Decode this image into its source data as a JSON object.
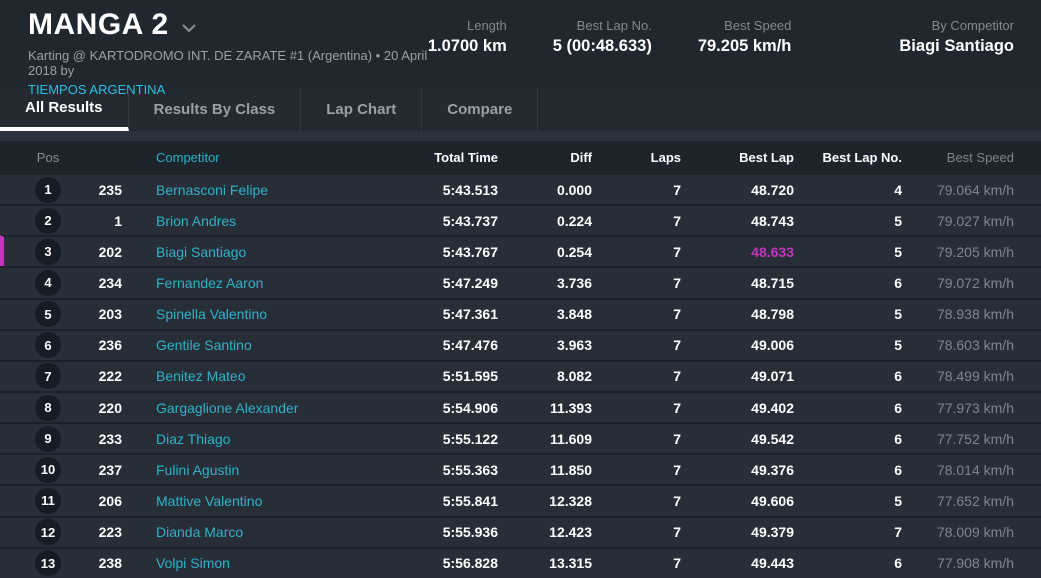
{
  "header": {
    "title": "MANGA 2",
    "subtitle": "Karting @ KARTODROMO INT. DE ZARATE #1 (Argentina) • 20 April 2018 by",
    "organizer": "TIEMPOS ARGENTINA",
    "stats": [
      {
        "label": "Length",
        "value": "1.0700 km"
      },
      {
        "label": "Best Lap No.",
        "value": "5 (00:48.633)"
      },
      {
        "label": "Best Speed",
        "value": "79.205 km/h"
      },
      {
        "label": "By Competitor",
        "value": "Biagi Santiago"
      }
    ]
  },
  "tabs": {
    "items": [
      {
        "label": "All Results",
        "active": true
      },
      {
        "label": "Results By Class",
        "active": false
      },
      {
        "label": "Lap Chart",
        "active": false
      },
      {
        "label": "Compare",
        "active": false
      }
    ]
  },
  "table": {
    "columns": [
      {
        "key": "pos",
        "label": "Pos"
      },
      {
        "key": "num",
        "label": ""
      },
      {
        "key": "name",
        "label": "Competitor"
      },
      {
        "key": "total",
        "label": "Total Time"
      },
      {
        "key": "diff",
        "label": "Diff"
      },
      {
        "key": "laps",
        "label": "Laps"
      },
      {
        "key": "bestlap",
        "label": "Best Lap"
      },
      {
        "key": "bestlapno",
        "label": "Best Lap No."
      },
      {
        "key": "speed",
        "label": "Best Speed"
      }
    ],
    "rows": [
      {
        "pos": "1",
        "num": "235",
        "name": "Bernasconi Felipe",
        "total": "5:43.513",
        "diff": "0.000",
        "laps": "7",
        "bestlap": "48.720",
        "bestlapno": "4",
        "speed": "79.064 km/h",
        "highlight": false,
        "best_overall": false
      },
      {
        "pos": "2",
        "num": "1",
        "name": "Brion Andres",
        "total": "5:43.737",
        "diff": "0.224",
        "laps": "7",
        "bestlap": "48.743",
        "bestlapno": "5",
        "speed": "79.027 km/h",
        "highlight": false,
        "best_overall": false
      },
      {
        "pos": "3",
        "num": "202",
        "name": "Biagi Santiago",
        "total": "5:43.767",
        "diff": "0.254",
        "laps": "7",
        "bestlap": "48.633",
        "bestlapno": "5",
        "speed": "79.205 km/h",
        "highlight": true,
        "best_overall": true
      },
      {
        "pos": "4",
        "num": "234",
        "name": "Fernandez Aaron",
        "total": "5:47.249",
        "diff": "3.736",
        "laps": "7",
        "bestlap": "48.715",
        "bestlapno": "6",
        "speed": "79.072 km/h",
        "highlight": false,
        "best_overall": false
      },
      {
        "pos": "5",
        "num": "203",
        "name": "Spinella Valentino",
        "total": "5:47.361",
        "diff": "3.848",
        "laps": "7",
        "bestlap": "48.798",
        "bestlapno": "5",
        "speed": "78.938 km/h",
        "highlight": false,
        "best_overall": false
      },
      {
        "pos": "6",
        "num": "236",
        "name": "Gentile Santino",
        "total": "5:47.476",
        "diff": "3.963",
        "laps": "7",
        "bestlap": "49.006",
        "bestlapno": "5",
        "speed": "78.603 km/h",
        "highlight": false,
        "best_overall": false
      },
      {
        "pos": "7",
        "num": "222",
        "name": "Benitez Mateo",
        "total": "5:51.595",
        "diff": "8.082",
        "laps": "7",
        "bestlap": "49.071",
        "bestlapno": "6",
        "speed": "78.499 km/h",
        "highlight": false,
        "best_overall": false
      },
      {
        "pos": "8",
        "num": "220",
        "name": "Gargaglione Alexander",
        "total": "5:54.906",
        "diff": "11.393",
        "laps": "7",
        "bestlap": "49.402",
        "bestlapno": "6",
        "speed": "77.973 km/h",
        "highlight": false,
        "best_overall": false
      },
      {
        "pos": "9",
        "num": "233",
        "name": "Diaz Thiago",
        "total": "5:55.122",
        "diff": "11.609",
        "laps": "7",
        "bestlap": "49.542",
        "bestlapno": "6",
        "speed": "77.752 km/h",
        "highlight": false,
        "best_overall": false
      },
      {
        "pos": "10",
        "num": "237",
        "name": "Fulini Agustin",
        "total": "5:55.363",
        "diff": "11.850",
        "laps": "7",
        "bestlap": "49.376",
        "bestlapno": "6",
        "speed": "78.014 km/h",
        "highlight": false,
        "best_overall": false
      },
      {
        "pos": "11",
        "num": "206",
        "name": "Mattive Valentino",
        "total": "5:55.841",
        "diff": "12.328",
        "laps": "7",
        "bestlap": "49.606",
        "bestlapno": "5",
        "speed": "77.652 km/h",
        "highlight": false,
        "best_overall": false
      },
      {
        "pos": "12",
        "num": "223",
        "name": "Dianda Marco",
        "total": "5:55.936",
        "diff": "12.423",
        "laps": "7",
        "bestlap": "49.379",
        "bestlapno": "7",
        "speed": "78.009 km/h",
        "highlight": false,
        "best_overall": false
      },
      {
        "pos": "13",
        "num": "238",
        "name": "Volpi Simon",
        "total": "5:56.828",
        "diff": "13.315",
        "laps": "7",
        "bestlap": "49.443",
        "bestlapno": "6",
        "speed": "77.908 km/h",
        "highlight": false,
        "best_overall": false
      }
    ]
  },
  "colors": {
    "accent_cyan": "#2fb2c8",
    "link_cyan": "#2bc0e2",
    "best_lap_magenta": "#c435bd",
    "header_bg": "#20272f",
    "row_bg": "#272e37"
  }
}
